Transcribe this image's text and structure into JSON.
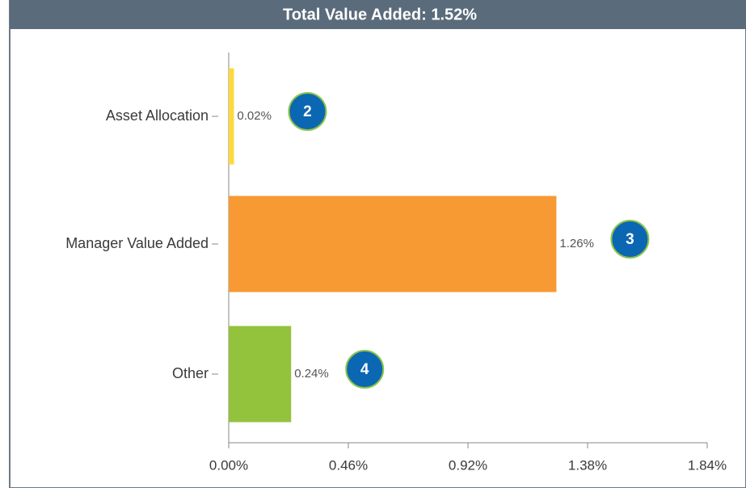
{
  "chart_data": {
    "type": "bar",
    "orientation": "horizontal",
    "title": "Total Value Added: 1.52%",
    "categories": [
      "Asset Allocation",
      "Manager Value Added",
      "Other"
    ],
    "values": [
      0.02,
      1.26,
      0.24
    ],
    "value_labels": [
      "0.02%",
      "1.26%",
      "0.24%"
    ],
    "colors": [
      "#fcd93c",
      "#f79a33",
      "#93c23c"
    ],
    "xlim": [
      0,
      1.84
    ],
    "xticks": [
      {
        "value": 0,
        "label": "0.00%"
      },
      {
        "value": 0.46,
        "label": "0.46%"
      },
      {
        "value": 0.92,
        "label": "0.92%"
      },
      {
        "value": 1.38,
        "label": "1.38%"
      },
      {
        "value": 1.84,
        "label": "1.84%"
      }
    ],
    "annotations": [
      "2",
      "3",
      "4"
    ]
  }
}
